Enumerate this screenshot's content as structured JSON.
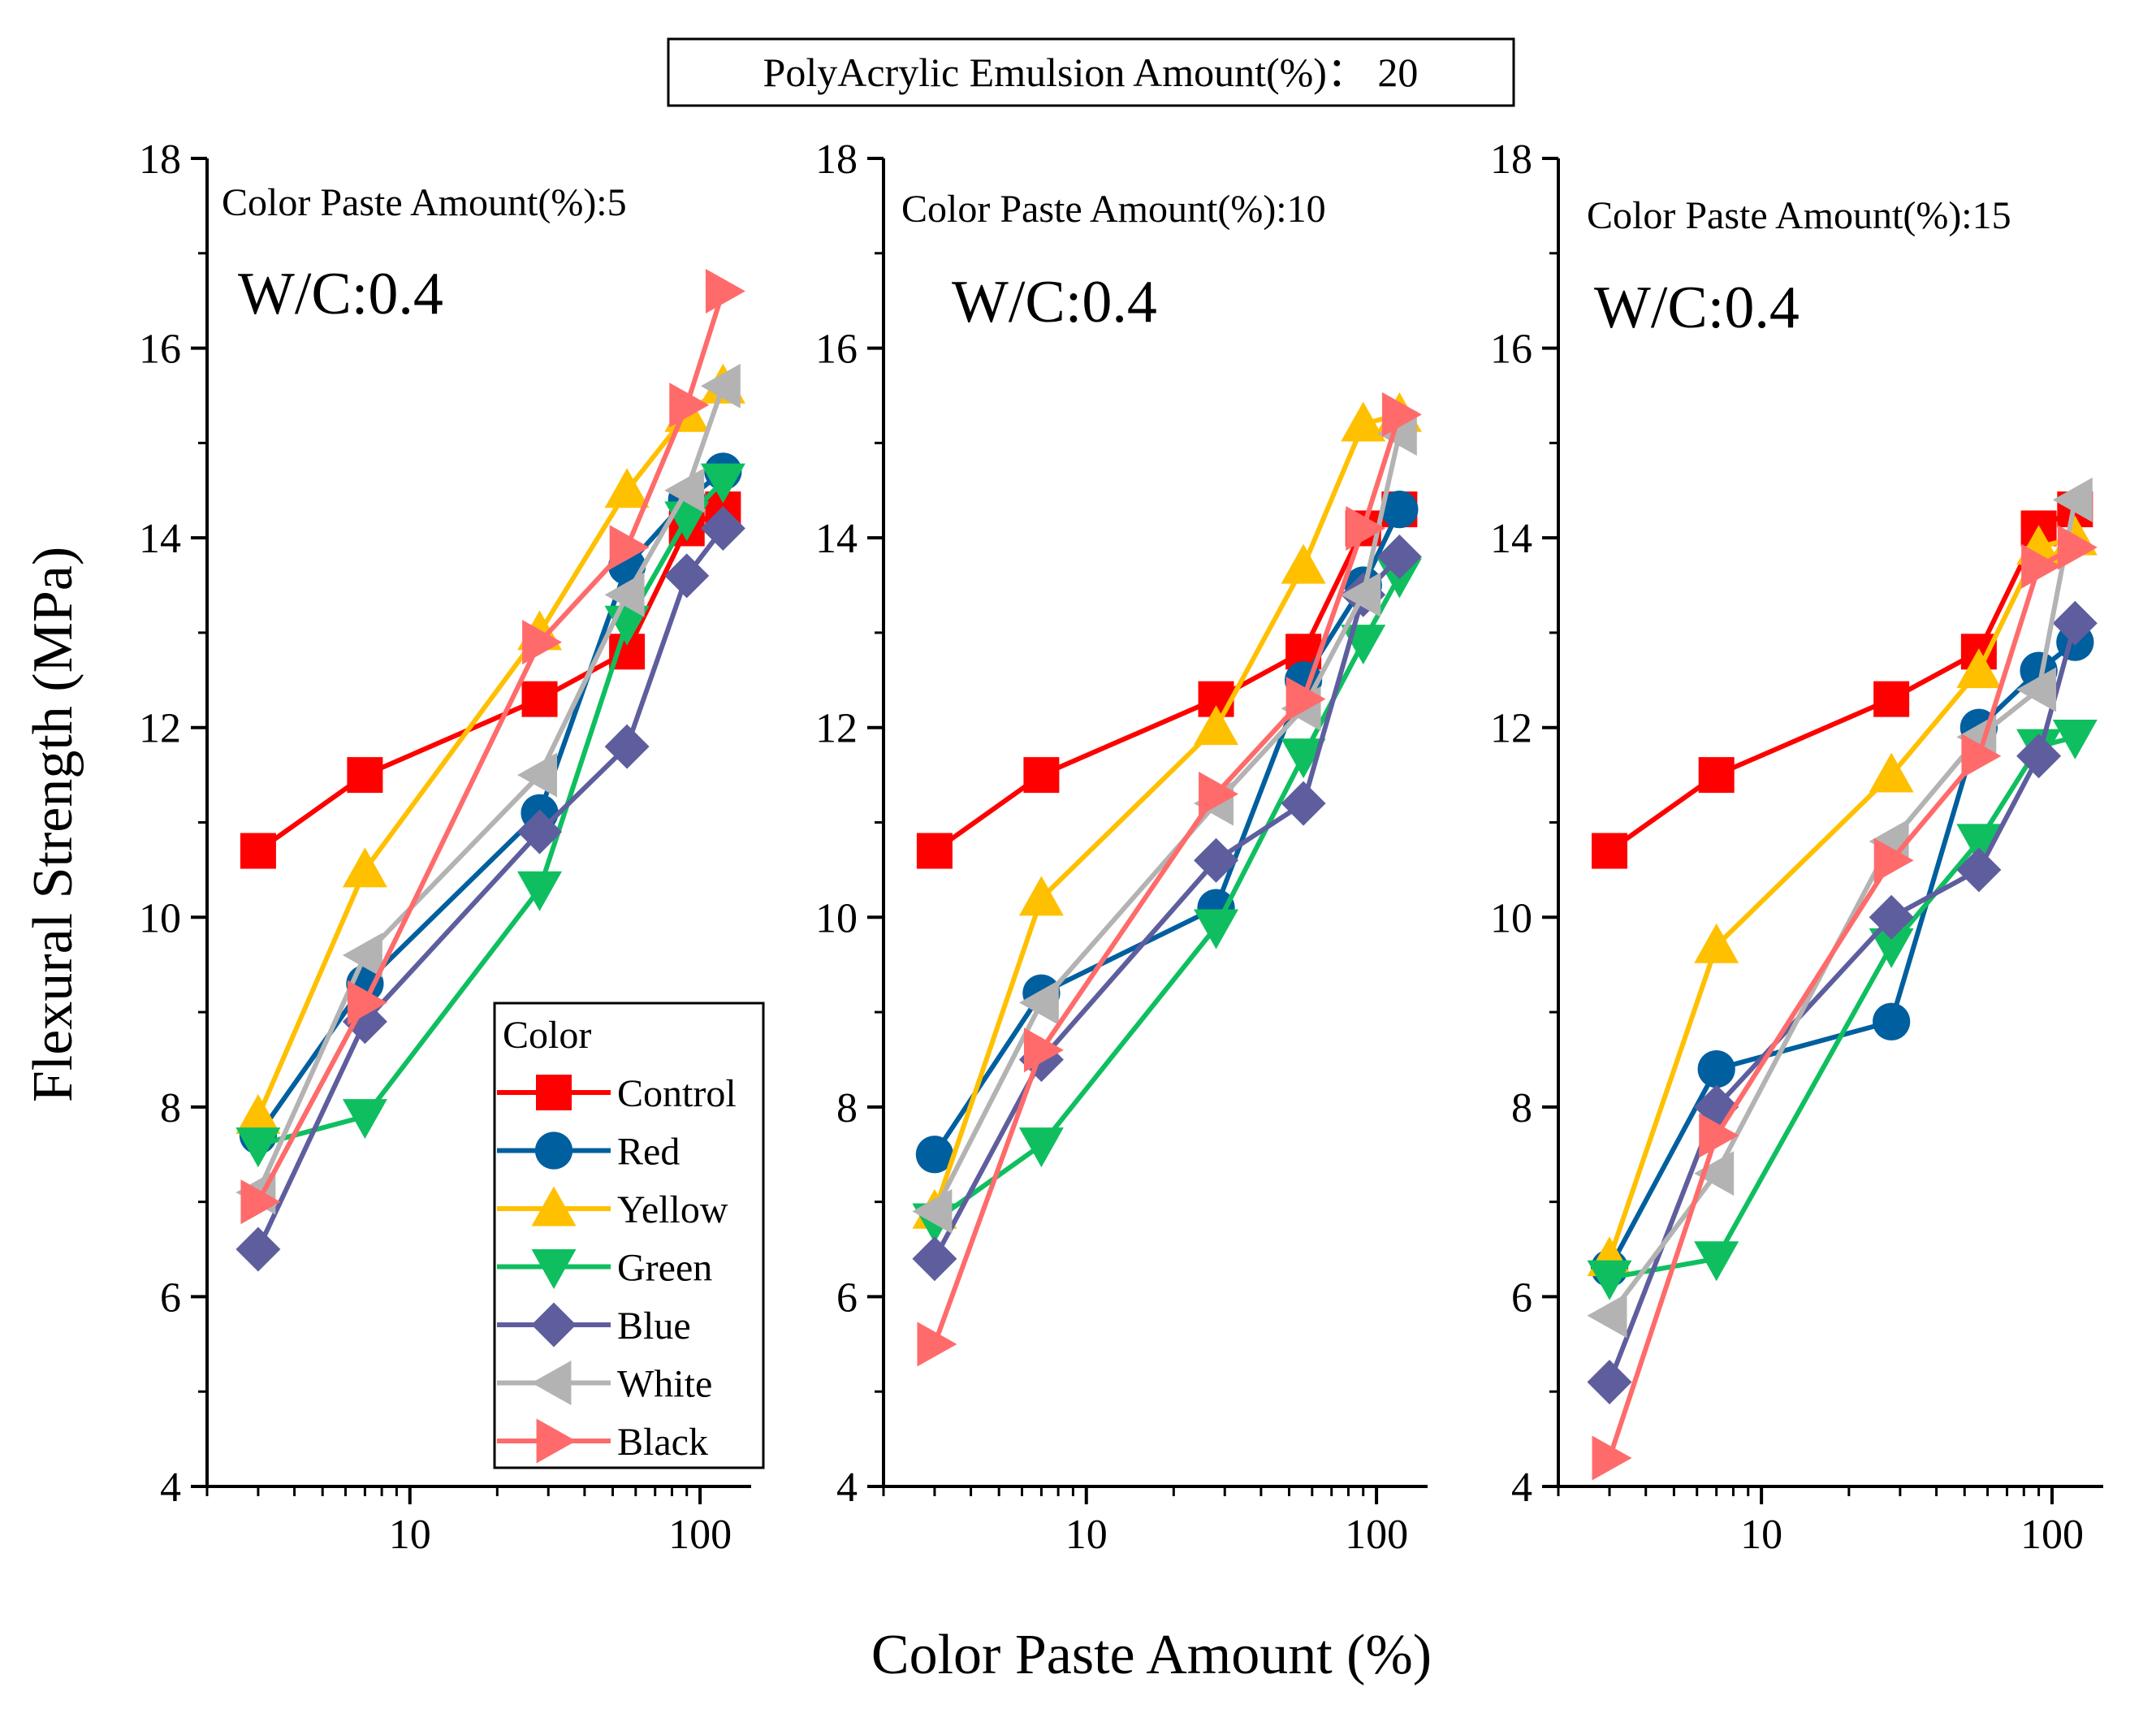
{
  "header": "PolyAcrylic Emulsion Amount(%)： 20",
  "xlabel": "Color Paste Amount (%)",
  "ylabel": "Flexural Strength (MPa)",
  "legend": {
    "title": "Color",
    "entries": [
      "Control",
      "Red",
      "Yellow",
      "Green",
      "Blue",
      "White",
      "Black"
    ]
  },
  "colors": {
    "Control": "#ff0000",
    "Red": "#005f9e",
    "Yellow": "#ffc000",
    "Green": "#0fbf5f",
    "Blue": "#5e5e9e",
    "White": "#b3b3b3",
    "Black": "#ff6b6b"
  },
  "y_ticks": [
    "4",
    "6",
    "8",
    "10",
    "12",
    "14",
    "16",
    "18"
  ],
  "x_ticks": [
    "10",
    "100"
  ],
  "chart_data": [
    {
      "type": "line",
      "annotation": "Color Paste Amount(%):5",
      "wc": "W/C:0.4",
      "xscale": "log",
      "xlim": [
        2,
        150
      ],
      "ylim": [
        4,
        18
      ],
      "x": [
        3,
        7,
        28,
        56,
        90,
        120
      ],
      "series": [
        {
          "name": "Control",
          "values": [
            10.7,
            11.5,
            12.3,
            12.8,
            14.1,
            14.3
          ]
        },
        {
          "name": "Red",
          "values": [
            7.7,
            9.3,
            11.1,
            13.7,
            14.4,
            14.7
          ]
        },
        {
          "name": "Yellow",
          "values": [
            7.9,
            10.5,
            13.0,
            14.5,
            15.3,
            15.6
          ]
        },
        {
          "name": "Green",
          "values": [
            7.6,
            7.9,
            10.3,
            13.1,
            14.2,
            14.6
          ]
        },
        {
          "name": "Blue",
          "values": [
            6.5,
            8.9,
            10.9,
            11.8,
            13.6,
            14.1
          ]
        },
        {
          "name": "White",
          "values": [
            7.1,
            9.6,
            11.5,
            13.4,
            14.5,
            15.6
          ]
        },
        {
          "name": "Black",
          "values": [
            7.0,
            9.1,
            12.9,
            13.9,
            15.4,
            16.6
          ]
        }
      ]
    },
    {
      "type": "line",
      "annotation": "Color Paste Amount(%):10",
      "wc": "W/C:0.4",
      "xscale": "log",
      "xlim": [
        2,
        150
      ],
      "ylim": [
        4,
        18
      ],
      "x": [
        3,
        7,
        28,
        56,
        90,
        120
      ],
      "series": [
        {
          "name": "Control",
          "values": [
            10.7,
            11.5,
            12.3,
            12.8,
            14.1,
            14.3
          ]
        },
        {
          "name": "Red",
          "values": [
            7.5,
            9.2,
            10.1,
            12.5,
            13.5,
            14.3
          ]
        },
        {
          "name": "Yellow",
          "values": [
            6.9,
            10.2,
            12.0,
            13.7,
            15.2,
            15.3
          ]
        },
        {
          "name": "Green",
          "values": [
            6.8,
            7.6,
            9.9,
            11.7,
            12.9,
            13.6
          ]
        },
        {
          "name": "Blue",
          "values": [
            6.4,
            8.5,
            10.6,
            11.2,
            13.4,
            13.8
          ]
        },
        {
          "name": "White",
          "values": [
            6.9,
            9.1,
            11.2,
            12.2,
            13.4,
            15.1
          ]
        },
        {
          "name": "Black",
          "values": [
            5.5,
            8.6,
            11.3,
            12.3,
            14.1,
            15.3
          ]
        }
      ]
    },
    {
      "type": "line",
      "annotation": "Color Paste Amount(%):15",
      "wc": "W/C:0.4",
      "xscale": "log",
      "xlim": [
        2,
        150
      ],
      "ylim": [
        4,
        18
      ],
      "x": [
        3,
        7,
        28,
        56,
        90,
        120
      ],
      "series": [
        {
          "name": "Control",
          "values": [
            10.7,
            11.5,
            12.3,
            12.8,
            14.1,
            14.3
          ]
        },
        {
          "name": "Red",
          "values": [
            6.3,
            8.4,
            8.9,
            12.0,
            12.6,
            12.9
          ]
        },
        {
          "name": "Yellow",
          "values": [
            6.4,
            9.7,
            11.5,
            12.6,
            13.9,
            14.0
          ]
        },
        {
          "name": "Green",
          "values": [
            6.2,
            6.4,
            9.7,
            10.8,
            11.8,
            11.9
          ]
        },
        {
          "name": "Blue",
          "values": [
            5.1,
            8.0,
            10.0,
            10.5,
            11.7,
            13.1
          ]
        },
        {
          "name": "White",
          "values": [
            5.8,
            7.3,
            10.8,
            11.9,
            12.4,
            14.4
          ]
        },
        {
          "name": "Black",
          "values": [
            4.3,
            7.7,
            10.6,
            11.7,
            13.7,
            13.9
          ]
        }
      ]
    }
  ]
}
